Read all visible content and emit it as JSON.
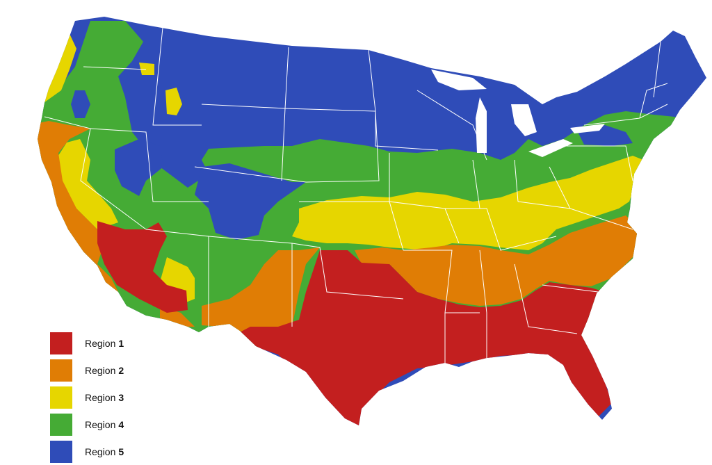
{
  "map": {
    "regions": [
      {
        "id": "r1",
        "word": "Region",
        "number": "1",
        "color": "#c31f1f"
      },
      {
        "id": "r2",
        "word": "Region",
        "number": "2",
        "color": "#e07d05"
      },
      {
        "id": "r3",
        "word": "Region",
        "number": "3",
        "color": "#e6d600"
      },
      {
        "id": "r4",
        "word": "Region",
        "number": "4",
        "color": "#45ab35"
      },
      {
        "id": "r5",
        "word": "Region",
        "number": "5",
        "color": "#2f4cb8"
      }
    ],
    "border_color": "#ffffff",
    "background": "#ffffff"
  }
}
